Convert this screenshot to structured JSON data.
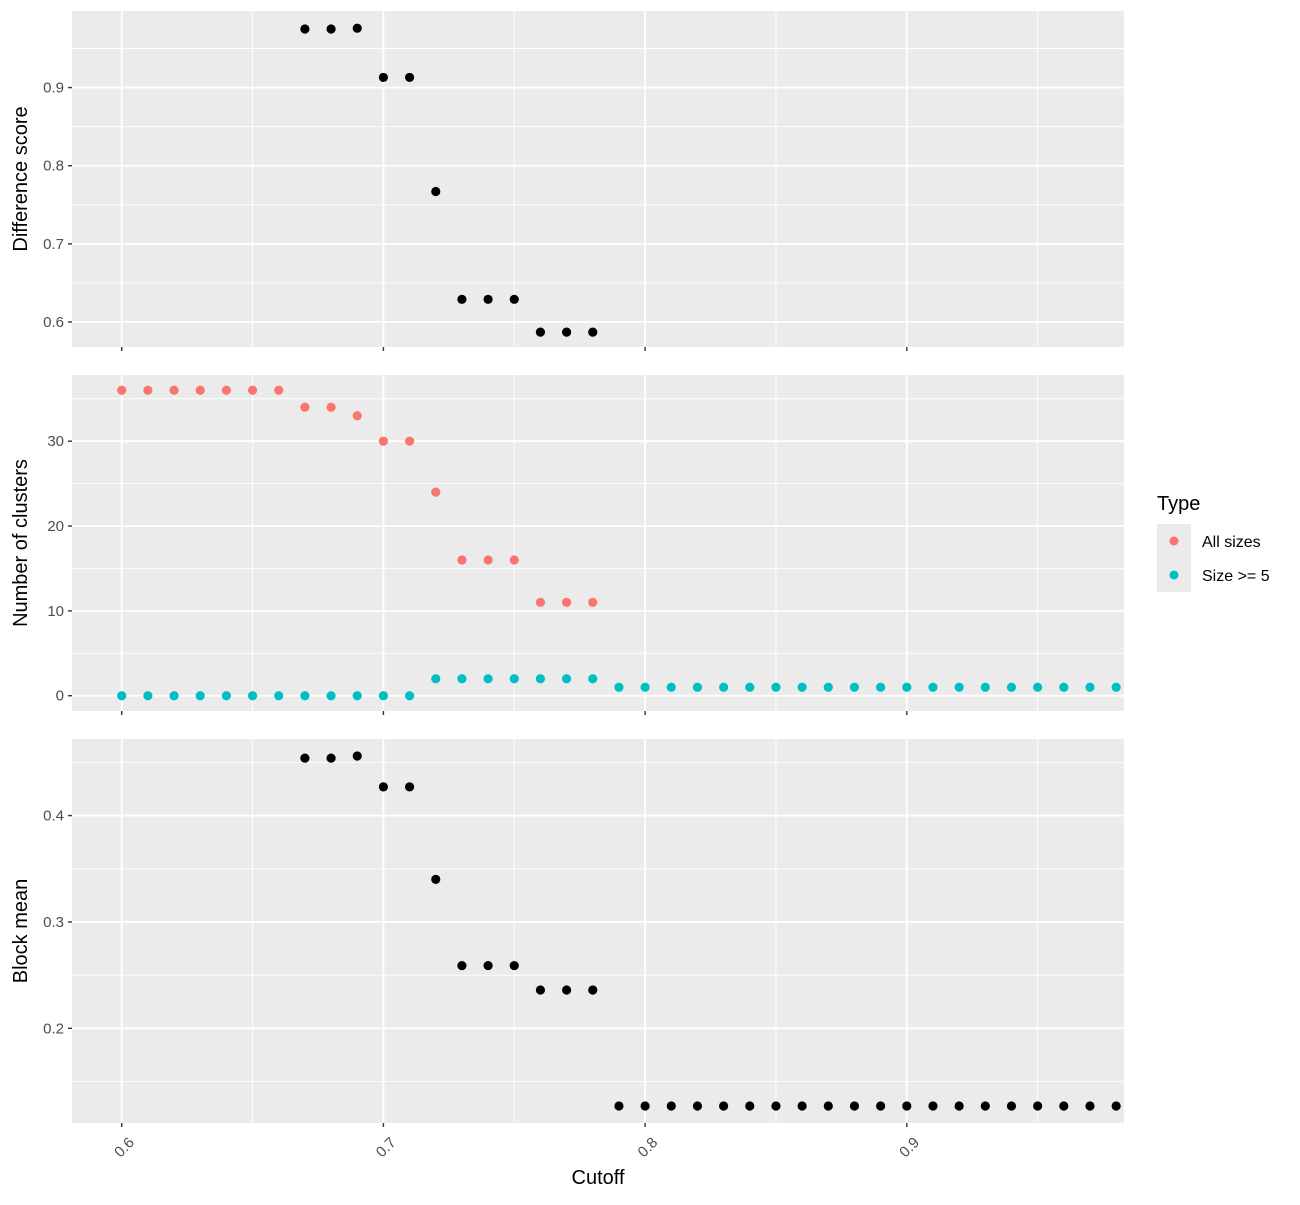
{
  "chart_data": {
    "type": "scatter",
    "xlabel": "Cutoff",
    "x_ticks": [
      "0.6",
      "0.7",
      "0.8",
      "0.9"
    ],
    "x_tick_values": [
      0.6,
      0.7,
      0.8,
      0.9
    ],
    "xlim": [
      0.581,
      0.983
    ],
    "panels": [
      {
        "ylabel": "Difference score",
        "ylim": [
          0.568,
          0.998
        ],
        "y_ticks": [
          "0.6",
          "0.7",
          "0.8",
          "0.9"
        ],
        "y_tick_values": [
          0.6,
          0.7,
          0.8,
          0.9
        ],
        "series": [
          {
            "color": "#000000",
            "x": [
              0.67,
              0.68,
              0.69,
              0.7,
              0.71,
              0.72,
              0.73,
              0.74,
              0.75,
              0.76,
              0.77,
              0.78
            ],
            "y": [
              0.975,
              0.975,
              0.976,
              0.913,
              0.913,
              0.767,
              0.629,
              0.629,
              0.629,
              0.587,
              0.587,
              0.587
            ]
          }
        ]
      },
      {
        "ylabel": "Number of clusters",
        "ylim": [
          -1.8,
          37.8
        ],
        "y_ticks": [
          "0",
          "10",
          "20",
          "30"
        ],
        "y_tick_values": [
          0,
          10,
          20,
          30
        ],
        "series": [
          {
            "name": "All sizes",
            "color": "#F8766D",
            "x": [
              0.6,
              0.61,
              0.62,
              0.63,
              0.64,
              0.65,
              0.66,
              0.67,
              0.68,
              0.69,
              0.7,
              0.71,
              0.72,
              0.73,
              0.74,
              0.75,
              0.76,
              0.77,
              0.78
            ],
            "y": [
              36,
              36,
              36,
              36,
              36,
              36,
              36,
              34,
              34,
              33,
              30,
              30,
              24,
              16,
              16,
              16,
              11,
              11,
              11
            ]
          },
          {
            "name": "Size >= 5",
            "color": "#00BFC4",
            "x": [
              0.6,
              0.61,
              0.62,
              0.63,
              0.64,
              0.65,
              0.66,
              0.67,
              0.68,
              0.69,
              0.7,
              0.71,
              0.72,
              0.73,
              0.74,
              0.75,
              0.76,
              0.77,
              0.78,
              0.79,
              0.8,
              0.81,
              0.82,
              0.83,
              0.84,
              0.85,
              0.86,
              0.87,
              0.88,
              0.89,
              0.9,
              0.91,
              0.92,
              0.93,
              0.94,
              0.95,
              0.96,
              0.97,
              0.98
            ],
            "y": [
              0,
              0,
              0,
              0,
              0,
              0,
              0,
              0,
              0,
              0,
              0,
              0,
              2,
              2,
              2,
              2,
              2,
              2,
              2,
              1,
              1,
              1,
              1,
              1,
              1,
              1,
              1,
              1,
              1,
              1,
              1,
              1,
              1,
              1,
              1,
              1,
              1,
              1,
              1
            ]
          }
        ]
      },
      {
        "ylabel": "Block mean",
        "ylim": [
          0.111,
          0.472
        ],
        "y_ticks": [
          "0.2",
          "0.3",
          "0.4"
        ],
        "y_tick_values": [
          0.2,
          0.3,
          0.4
        ],
        "series": [
          {
            "color": "#000000",
            "x": [
              0.67,
              0.68,
              0.69,
              0.7,
              0.71,
              0.72,
              0.73,
              0.74,
              0.75,
              0.76,
              0.77,
              0.78,
              0.79,
              0.8,
              0.81,
              0.82,
              0.83,
              0.84,
              0.85,
              0.86,
              0.87,
              0.88,
              0.89,
              0.9,
              0.91,
              0.92,
              0.93,
              0.94,
              0.95,
              0.96,
              0.97,
              0.98
            ],
            "y": [
              0.454,
              0.454,
              0.456,
              0.427,
              0.427,
              0.34,
              0.259,
              0.259,
              0.259,
              0.236,
              0.236,
              0.236,
              0.127,
              0.127,
              0.127,
              0.127,
              0.127,
              0.127,
              0.127,
              0.127,
              0.127,
              0.127,
              0.127,
              0.127,
              0.127,
              0.127,
              0.127,
              0.127,
              0.127,
              0.127,
              0.127,
              0.127
            ]
          }
        ]
      }
    ],
    "legend": {
      "title": "Type",
      "position": "right",
      "entries": [
        {
          "label": "All sizes",
          "color": "#F8766D"
        },
        {
          "label": "Size >= 5",
          "color": "#00BFC4"
        }
      ]
    },
    "grid": true
  }
}
